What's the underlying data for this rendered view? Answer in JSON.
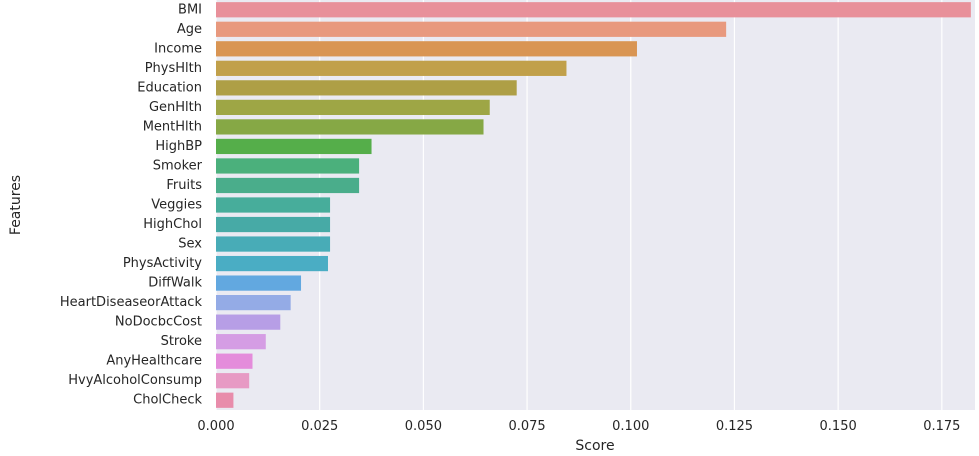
{
  "chart_data": {
    "type": "bar",
    "orientation": "horizontal",
    "title": "",
    "xlabel": "Score",
    "ylabel": "Features",
    "xlim": [
      0,
      0.183
    ],
    "grid": true,
    "xticks": [
      "0.000",
      "0.025",
      "0.050",
      "0.075",
      "0.100",
      "0.125",
      "0.150",
      "0.175"
    ],
    "categories": [
      "BMI",
      "Age",
      "Income",
      "PhysHlth",
      "Education",
      "GenHlth",
      "MentHlth",
      "HighBP",
      "Smoker",
      "Fruits",
      "Veggies",
      "HighChol",
      "Sex",
      "PhysActivity",
      "DiffWalk",
      "HeartDiseaseorAttack",
      "NoDocbcCost",
      "Stroke",
      "AnyHealthcare",
      "HvyAlcoholConsump",
      "CholCheck"
    ],
    "values": [
      0.182,
      0.123,
      0.1015,
      0.0845,
      0.0725,
      0.066,
      0.0645,
      0.0375,
      0.0345,
      0.0345,
      0.0275,
      0.0275,
      0.0275,
      0.027,
      0.0205,
      0.018,
      0.0155,
      0.012,
      0.0088,
      0.008,
      0.0042
    ],
    "colors": [
      "#e8909a",
      "#e8997e",
      "#d99553",
      "#c1a04a",
      "#ae9f46",
      "#9ea645",
      "#86a845",
      "#55ae4a",
      "#4bb07c",
      "#4aad8b",
      "#47ad9b",
      "#47aaa6",
      "#48acb7",
      "#4aadc4",
      "#62a8e0",
      "#94abe6",
      "#b79ee6",
      "#d59de4",
      "#e48cdb",
      "#e79ac4",
      "#e88cab"
    ]
  }
}
